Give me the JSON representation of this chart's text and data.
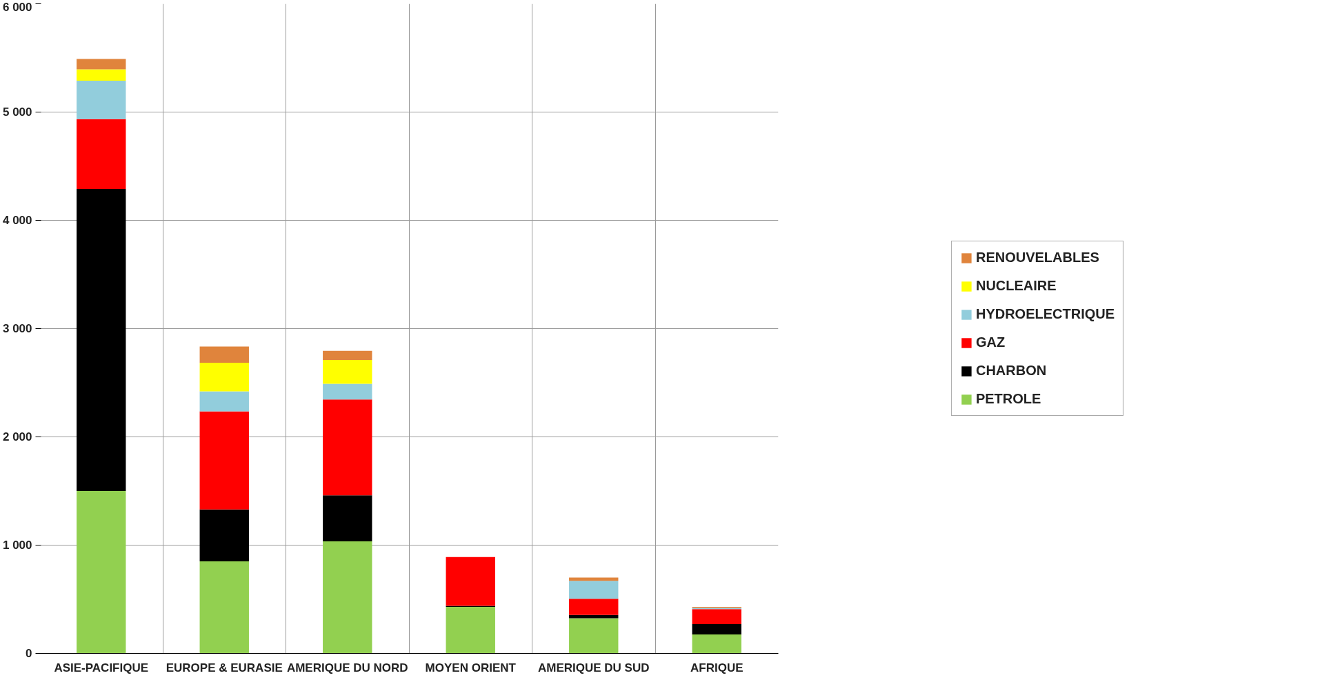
{
  "chart_data": {
    "type": "bar",
    "stacked": true,
    "categories": [
      "ASIE-PACIFIQUE",
      "EUROPE & EURASIE",
      "AMERIQUE DU NORD",
      "MOYEN ORIENT",
      "AMERIQUE DU SUD",
      "AFRIQUE"
    ],
    "series": [
      {
        "name": "PETROLE",
        "color": "#92d050",
        "values": [
          1500,
          850,
          1035,
          430,
          325,
          175
        ]
      },
      {
        "name": "CHARBON",
        "color": "#000000",
        "values": [
          2790,
          480,
          425,
          10,
          30,
          95
        ]
      },
      {
        "name": "GAZ",
        "color": "#ff0000",
        "values": [
          645,
          905,
          885,
          450,
          150,
          140
        ]
      },
      {
        "name": "HYDROELECTRIQUE",
        "color": "#92cddc",
        "values": [
          355,
          185,
          145,
          0,
          165,
          10
        ]
      },
      {
        "name": "NUCLEAIRE",
        "color": "#ffff00",
        "values": [
          105,
          265,
          220,
          0,
          0,
          0
        ]
      },
      {
        "name": "RENOUVELABLES",
        "color": "#e0843c",
        "values": [
          95,
          150,
          85,
          0,
          30,
          10
        ]
      }
    ],
    "ylim": [
      0,
      6000
    ],
    "yticks": [
      {
        "value": 0,
        "label": "0"
      },
      {
        "value": 1000,
        "label": "1 000"
      },
      {
        "value": 2000,
        "label": "2 000"
      },
      {
        "value": 3000,
        "label": "3 000"
      },
      {
        "value": 4000,
        "label": "4 000"
      },
      {
        "value": 5000,
        "label": "5 000"
      },
      {
        "value": 6000,
        "label": "6 000"
      }
    ],
    "grid": true,
    "legend": "right"
  }
}
